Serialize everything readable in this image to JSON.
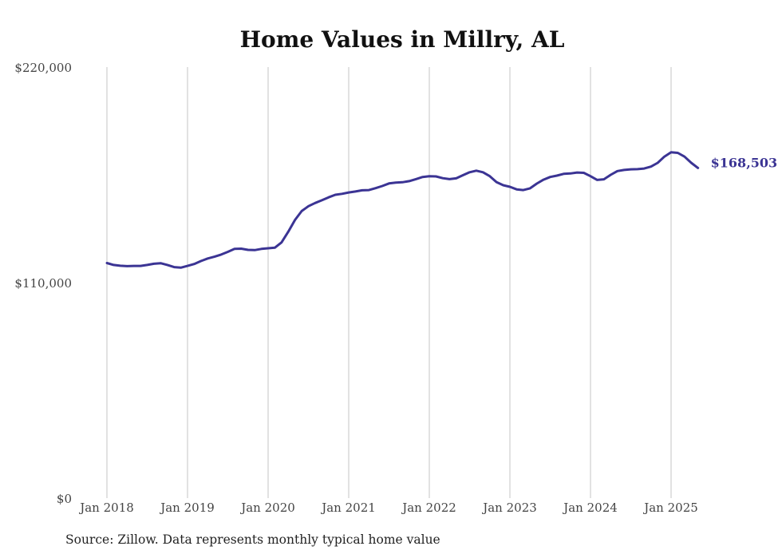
{
  "chart_data": {
    "type": "line",
    "title": "Home Values in Millry, AL",
    "xlabel": "",
    "ylabel": "",
    "ylim": [
      0,
      220000
    ],
    "y_ticks": [
      "$0",
      "$110,000",
      "$220,000"
    ],
    "x_ticks": [
      "Jan 2018",
      "Jan 2019",
      "Jan 2020",
      "Jan 2021",
      "Jan 2022",
      "Jan 2023",
      "Jan 2024",
      "Jan 2025"
    ],
    "grid": "vertical",
    "legend": "none",
    "line_color": "#3b3494",
    "end_label": "$168,503",
    "x": [
      "2018-01",
      "2018-02",
      "2018-03",
      "2018-04",
      "2018-05",
      "2018-06",
      "2018-07",
      "2018-08",
      "2018-09",
      "2018-10",
      "2018-11",
      "2018-12",
      "2019-01",
      "2019-02",
      "2019-03",
      "2019-04",
      "2019-05",
      "2019-06",
      "2019-07",
      "2019-08",
      "2019-09",
      "2019-10",
      "2019-11",
      "2019-12",
      "2020-01",
      "2020-02",
      "2020-03",
      "2020-04",
      "2020-05",
      "2020-06",
      "2020-07",
      "2020-08",
      "2020-09",
      "2020-10",
      "2020-11",
      "2020-12",
      "2021-01",
      "2021-02",
      "2021-03",
      "2021-04",
      "2021-05",
      "2021-06",
      "2021-07",
      "2021-08",
      "2021-09",
      "2021-10",
      "2021-11",
      "2021-12",
      "2022-01",
      "2022-02",
      "2022-03",
      "2022-04",
      "2022-05",
      "2022-06",
      "2022-07",
      "2022-08",
      "2022-09",
      "2022-10",
      "2022-11",
      "2022-12",
      "2023-01",
      "2023-02",
      "2023-03",
      "2023-04",
      "2023-05",
      "2023-06",
      "2023-07",
      "2023-08",
      "2023-09",
      "2023-10",
      "2023-11",
      "2023-12",
      "2024-01",
      "2024-02",
      "2024-03",
      "2024-04",
      "2024-05",
      "2024-06",
      "2024-07",
      "2024-08",
      "2024-09",
      "2024-10",
      "2024-11",
      "2024-12",
      "2025-01",
      "2025-02",
      "2025-03",
      "2025-04",
      "2025-05"
    ],
    "values": [
      120000,
      119000,
      118600,
      118400,
      118500,
      118500,
      119000,
      119600,
      119900,
      119000,
      117900,
      117600,
      118500,
      119500,
      121000,
      122300,
      123200,
      124300,
      125700,
      127200,
      127300,
      126700,
      126600,
      127200,
      127500,
      127800,
      130500,
      136000,
      142000,
      146500,
      149000,
      150600,
      152000,
      153500,
      154800,
      155300,
      156000,
      156500,
      157100,
      157200,
      158200,
      159300,
      160600,
      161000,
      161200,
      161800,
      162800,
      163900,
      164300,
      164200,
      163300,
      162800,
      163200,
      164800,
      166300,
      167100,
      166300,
      164300,
      161300,
      159700,
      158900,
      157600,
      157200,
      158100,
      160500,
      162500,
      163900,
      164600,
      165500,
      165700,
      166200,
      166000,
      164300,
      162400,
      162700,
      165000,
      166900,
      167500,
      167800,
      167900,
      168200,
      169200,
      171100,
      174300,
      176500,
      176200,
      174300,
      171100,
      168503
    ]
  },
  "source": "Source: Zillow. Data represents monthly typical home value"
}
